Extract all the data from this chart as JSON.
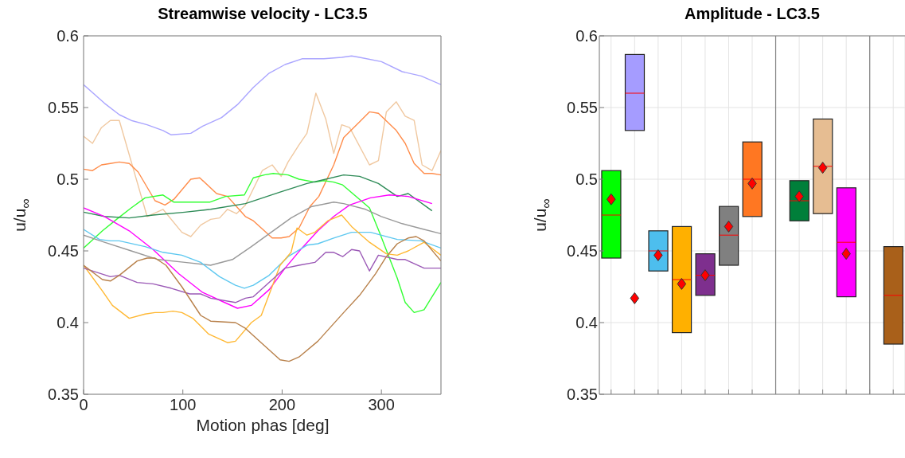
{
  "chart_data": [
    {
      "type": "line",
      "title": "Streamwise velocity - LC3.5",
      "xlabel": "Motion phas [deg]",
      "ylabel": "u/u$_{∞}$",
      "xlim": [
        0,
        360
      ],
      "xticks": [
        0,
        100,
        200,
        300
      ],
      "ylim": [
        0.35,
        0.6
      ],
      "yticks": [
        0.35,
        0.4,
        0.45,
        0.5,
        0.55,
        0.6
      ],
      "grid": true,
      "series": [
        {
          "color": "#aaa5ff",
          "x": [
            0,
            21,
            36,
            48,
            64,
            80,
            88,
            108,
            120,
            139,
            155,
            171,
            187,
            203,
            220,
            242,
            260,
            270,
            278,
            300,
            321,
            340,
            360
          ],
          "values": [
            0.566,
            0.553,
            0.545,
            0.541,
            0.538,
            0.534,
            0.531,
            0.532,
            0.537,
            0.543,
            0.552,
            0.564,
            0.574,
            0.58,
            0.584,
            0.584,
            0.585,
            0.586,
            0.585,
            0.582,
            0.575,
            0.572,
            0.566
          ]
        },
        {
          "color": "#f0c8a0",
          "x": [
            0,
            9,
            18,
            27,
            36,
            64,
            80,
            99,
            108,
            118,
            128,
            137,
            145,
            154,
            163,
            180,
            190,
            199,
            206,
            217,
            225,
            234,
            244,
            252,
            260,
            268,
            288,
            297,
            305,
            315,
            324,
            333,
            341,
            351,
            360
          ],
          "values": [
            0.53,
            0.525,
            0.536,
            0.541,
            0.541,
            0.474,
            0.479,
            0.463,
            0.46,
            0.468,
            0.472,
            0.473,
            0.479,
            0.476,
            0.482,
            0.506,
            0.51,
            0.502,
            0.512,
            0.524,
            0.532,
            0.56,
            0.542,
            0.518,
            0.538,
            0.536,
            0.51,
            0.513,
            0.547,
            0.554,
            0.544,
            0.541,
            0.51,
            0.506,
            0.52
          ]
        },
        {
          "color": "#ff8c4a",
          "x": [
            0,
            9,
            18,
            27,
            36,
            46,
            55,
            72,
            82,
            91,
            108,
            117,
            134,
            145,
            163,
            171,
            179,
            190,
            199,
            207,
            217,
            228,
            237,
            252,
            262,
            278,
            288,
            297,
            315,
            324,
            333,
            343,
            351,
            360
          ],
          "values": [
            0.507,
            0.506,
            0.51,
            0.511,
            0.512,
            0.511,
            0.505,
            0.485,
            0.482,
            0.486,
            0.5,
            0.501,
            0.49,
            0.488,
            0.474,
            0.471,
            0.466,
            0.459,
            0.459,
            0.46,
            0.466,
            0.481,
            0.488,
            0.51,
            0.529,
            0.54,
            0.547,
            0.546,
            0.534,
            0.525,
            0.511,
            0.504,
            0.504,
            0.503
          ]
        },
        {
          "color": "#33ff33",
          "x": [
            0,
            19,
            35,
            48,
            62,
            80,
            91,
            107,
            127,
            143,
            162,
            171,
            182,
            191,
            206,
            217,
            233,
            242,
            252,
            261,
            288,
            298,
            307,
            316,
            324,
            333,
            343,
            351,
            360
          ],
          "values": [
            0.452,
            0.464,
            0.473,
            0.48,
            0.487,
            0.489,
            0.484,
            0.484,
            0.484,
            0.488,
            0.489,
            0.501,
            0.503,
            0.504,
            0.503,
            0.5,
            0.498,
            0.499,
            0.498,
            0.496,
            0.48,
            0.463,
            0.447,
            0.431,
            0.414,
            0.407,
            0.409,
            0.418,
            0.428
          ]
        },
        {
          "color": "#2e8b57",
          "x": [
            0,
            21,
            46,
            70,
            102,
            128,
            163,
            198,
            225,
            238,
            262,
            278,
            297,
            316,
            327,
            351
          ],
          "values": [
            0.477,
            0.474,
            0.473,
            0.475,
            0.477,
            0.479,
            0.483,
            0.491,
            0.497,
            0.499,
            0.503,
            0.502,
            0.497,
            0.488,
            0.49,
            0.478
          ]
        },
        {
          "color": "#ff00ff",
          "x": [
            0,
            21,
            46,
            70,
            96,
            120,
            139,
            155,
            169,
            187,
            203,
            220,
            236,
            252,
            268,
            289,
            308,
            327,
            351
          ],
          "values": [
            0.48,
            0.474,
            0.464,
            0.451,
            0.434,
            0.421,
            0.415,
            0.41,
            0.412,
            0.423,
            0.438,
            0.452,
            0.464,
            0.474,
            0.482,
            0.487,
            0.489,
            0.488,
            0.483
          ]
        },
        {
          "color": "#999999",
          "x": [
            0,
            21,
            48,
            75,
            102,
            128,
            150,
            169,
            187,
            209,
            230,
            252,
            262,
            284,
            300,
            321,
            343,
            360
          ],
          "values": [
            0.461,
            0.456,
            0.45,
            0.444,
            0.442,
            0.44,
            0.444,
            0.453,
            0.462,
            0.473,
            0.481,
            0.484,
            0.483,
            0.479,
            0.474,
            0.469,
            0.465,
            0.462
          ]
        },
        {
          "color": "#5ec8f0",
          "x": [
            0,
            16,
            27,
            36,
            62,
            80,
            99,
            118,
            137,
            153,
            162,
            171,
            187,
            206,
            225,
            236,
            252,
            270,
            289,
            316,
            340,
            360
          ],
          "values": [
            0.465,
            0.458,
            0.457,
            0.457,
            0.453,
            0.449,
            0.447,
            0.442,
            0.432,
            0.426,
            0.424,
            0.426,
            0.433,
            0.446,
            0.454,
            0.455,
            0.459,
            0.463,
            0.463,
            0.458,
            0.457,
            0.452
          ]
        },
        {
          "color": "#ffb833",
          "x": [
            0,
            19,
            29,
            46,
            62,
            72,
            80,
            90,
            99,
            110,
            126,
            145,
            153,
            169,
            179,
            198,
            209,
            215,
            225,
            233,
            246,
            260,
            270,
            288,
            305,
            316,
            327,
            343,
            360
          ],
          "values": [
            0.44,
            0.422,
            0.412,
            0.403,
            0.406,
            0.407,
            0.407,
            0.408,
            0.407,
            0.403,
            0.392,
            0.386,
            0.387,
            0.4,
            0.405,
            0.44,
            0.449,
            0.466,
            0.461,
            0.463,
            0.471,
            0.475,
            0.467,
            0.456,
            0.448,
            0.447,
            0.45,
            0.456,
            0.447
          ]
        },
        {
          "color": "#9b59b6",
          "x": [
            0,
            27,
            36,
            54,
            70,
            88,
            107,
            118,
            128,
            153,
            163,
            171,
            187,
            203,
            217,
            233,
            244,
            252,
            261,
            270,
            278,
            288,
            297,
            316,
            324,
            343,
            360
          ],
          "values": [
            0.438,
            0.432,
            0.433,
            0.428,
            0.427,
            0.424,
            0.42,
            0.42,
            0.417,
            0.414,
            0.417,
            0.418,
            0.428,
            0.438,
            0.44,
            0.442,
            0.449,
            0.449,
            0.446,
            0.451,
            0.45,
            0.436,
            0.447,
            0.444,
            0.444,
            0.438,
            0.438
          ]
        },
        {
          "color": "#b8804a",
          "x": [
            0,
            19,
            27,
            36,
            54,
            64,
            72,
            83,
            99,
            118,
            128,
            153,
            163,
            182,
            198,
            207,
            217,
            236,
            262,
            278,
            294,
            305,
            316,
            327,
            335,
            343,
            360
          ],
          "values": [
            0.44,
            0.43,
            0.429,
            0.433,
            0.443,
            0.445,
            0.445,
            0.44,
            0.425,
            0.405,
            0.401,
            0.4,
            0.396,
            0.384,
            0.374,
            0.373,
            0.376,
            0.387,
            0.407,
            0.419,
            0.434,
            0.446,
            0.455,
            0.459,
            0.46,
            0.457,
            0.443
          ]
        }
      ]
    },
    {
      "type": "box",
      "title": "Amplitude - LC3.5",
      "ylabel": "u/u$_{∞}$",
      "ylim": [
        0.35,
        0.6
      ],
      "yticks": [
        0.35,
        0.4,
        0.45,
        0.5,
        0.55,
        0.6
      ],
      "grid": true,
      "tick_labels": "y",
      "categories": [
        null,
        null,
        null,
        null,
        null,
        null,
        null,
        null,
        null,
        null,
        null,
        null,
        null
      ],
      "colors": [
        "#00ff00",
        "#a59cff",
        "#4dbeee",
        "#ffb000",
        "#7e2f8e",
        "#808080",
        "#ff7722",
        null,
        "#007f3a",
        "#e6bd92",
        "#ff00ff",
        null,
        "#a9601a"
      ],
      "boxes": [
        {
          "low": 0.445,
          "q1": 0.445,
          "median": 0.475,
          "q3": 0.506,
          "high": 0.506,
          "mean": 0.486
        },
        {
          "low": 0.534,
          "q1": 0.534,
          "median": 0.56,
          "q3": 0.587,
          "high": 0.587,
          "mean": 0.417
        },
        {
          "low": 0.436,
          "q1": 0.436,
          "median": 0.45,
          "q3": 0.464,
          "high": 0.464,
          "mean": 0.447
        },
        {
          "low": 0.393,
          "q1": 0.393,
          "median": 0.43,
          "q3": 0.467,
          "high": 0.467,
          "mean": 0.427
        },
        {
          "low": 0.419,
          "q1": 0.419,
          "median": 0.433,
          "q3": 0.448,
          "high": 0.448,
          "mean": 0.433
        },
        {
          "low": 0.44,
          "q1": 0.44,
          "median": 0.461,
          "q3": 0.481,
          "high": 0.481,
          "mean": 0.467
        },
        {
          "low": 0.474,
          "q1": 0.474,
          "median": 0.5,
          "q3": 0.526,
          "high": 0.526,
          "mean": 0.497
        },
        null,
        {
          "low": 0.471,
          "q1": 0.471,
          "median": 0.485,
          "q3": 0.499,
          "high": 0.499,
          "mean": 0.488
        },
        {
          "low": 0.476,
          "q1": 0.476,
          "median": 0.509,
          "q3": 0.542,
          "high": 0.542,
          "mean": 0.508
        },
        {
          "low": 0.418,
          "q1": 0.418,
          "median": 0.456,
          "q3": 0.494,
          "high": 0.494,
          "mean": 0.448
        },
        null,
        {
          "low": 0.385,
          "q1": 0.385,
          "median": 0.419,
          "q3": 0.453,
          "high": 0.453
        }
      ]
    }
  ]
}
